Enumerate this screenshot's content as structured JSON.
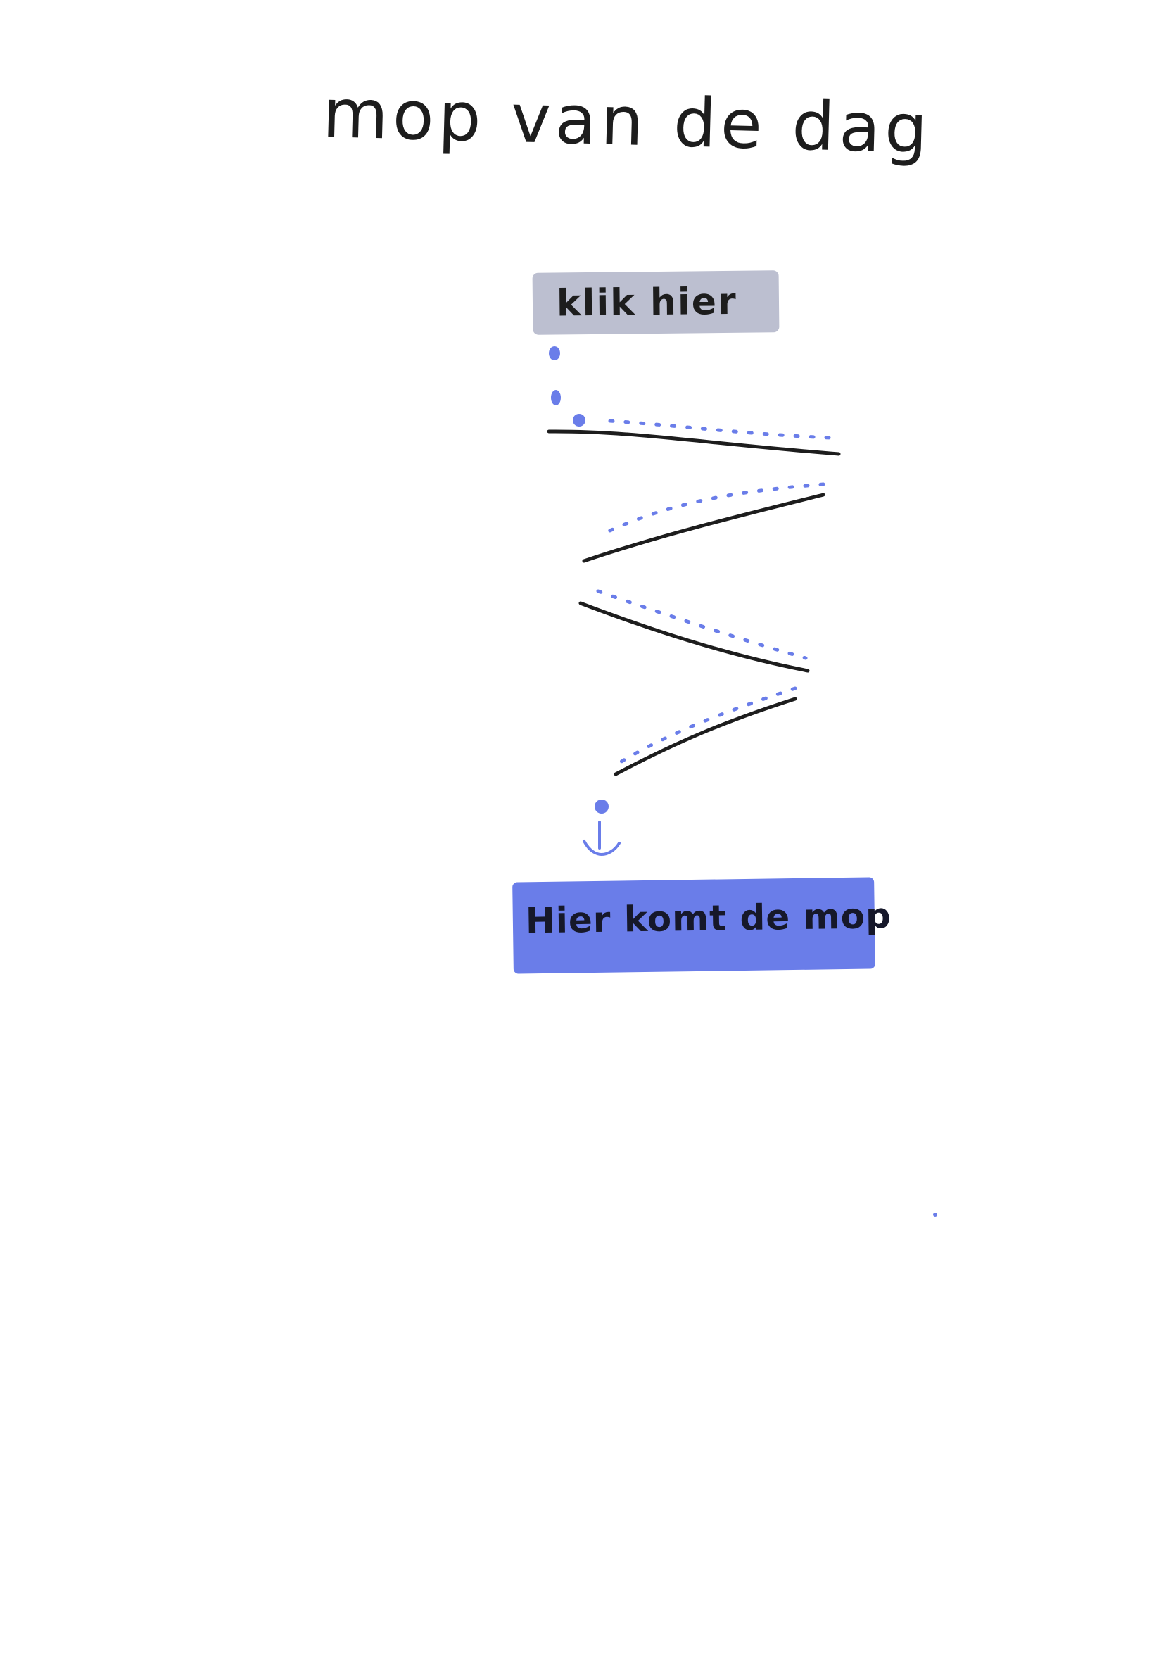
{
  "title": "mop van de dag",
  "button": {
    "label": "klik hier"
  },
  "result": {
    "label": "Hier komt de mop"
  },
  "colors": {
    "ink": "#1d1d1d",
    "button_fill": "#bcbfd0",
    "accent": "#6a7de9",
    "dots": "#6a7de9"
  },
  "icons": {
    "arrow": "down-arrow-icon"
  }
}
